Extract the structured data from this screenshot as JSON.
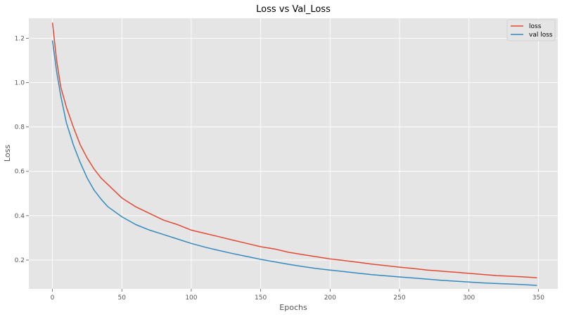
{
  "chart_data": {
    "type": "line",
    "title": "Loss vs Val_Loss",
    "xlabel": "Epochs",
    "ylabel": "Loss",
    "xlim": [
      -17,
      364
    ],
    "ylim": [
      0.07,
      1.29
    ],
    "xticks": [
      0,
      50,
      100,
      150,
      200,
      250,
      300,
      350
    ],
    "yticks": [
      0.2,
      0.4,
      0.6,
      0.8,
      1.0,
      1.2
    ],
    "ytick_labels": [
      "0.2",
      "0.4",
      "0.6",
      "0.8",
      "1.0",
      "1.2"
    ],
    "grid": true,
    "legend_position": "top-right",
    "colors": {
      "background": "#e5e5e5",
      "grid": "#ffffff",
      "loss": "#e24a33",
      "val_loss": "#348abd"
    },
    "series": [
      {
        "name": "loss",
        "x": [
          0,
          3,
          6,
          10,
          15,
          20,
          25,
          30,
          35,
          40,
          50,
          60,
          70,
          80,
          90,
          100,
          110,
          120,
          130,
          140,
          150,
          160,
          170,
          180,
          190,
          200,
          210,
          220,
          230,
          240,
          250,
          260,
          270,
          280,
          290,
          300,
          310,
          320,
          330,
          340,
          349
        ],
        "y": [
          1.27,
          1.1,
          0.98,
          0.89,
          0.8,
          0.72,
          0.66,
          0.61,
          0.57,
          0.54,
          0.48,
          0.44,
          0.41,
          0.38,
          0.36,
          0.335,
          0.32,
          0.305,
          0.29,
          0.275,
          0.26,
          0.25,
          0.235,
          0.225,
          0.215,
          0.205,
          0.198,
          0.19,
          0.182,
          0.175,
          0.168,
          0.162,
          0.155,
          0.15,
          0.145,
          0.14,
          0.135,
          0.13,
          0.127,
          0.124,
          0.12
        ]
      },
      {
        "name": "val loss",
        "x": [
          0,
          3,
          6,
          10,
          15,
          20,
          25,
          30,
          35,
          40,
          50,
          60,
          70,
          80,
          90,
          100,
          110,
          120,
          130,
          140,
          150,
          160,
          170,
          180,
          190,
          200,
          210,
          220,
          230,
          240,
          250,
          260,
          270,
          280,
          290,
          300,
          310,
          320,
          330,
          340,
          349
        ],
        "y": [
          1.19,
          1.05,
          0.94,
          0.82,
          0.72,
          0.64,
          0.57,
          0.515,
          0.475,
          0.44,
          0.395,
          0.36,
          0.335,
          0.315,
          0.295,
          0.275,
          0.258,
          0.243,
          0.229,
          0.216,
          0.203,
          0.192,
          0.181,
          0.171,
          0.162,
          0.155,
          0.148,
          0.141,
          0.134,
          0.129,
          0.124,
          0.119,
          0.114,
          0.109,
          0.105,
          0.101,
          0.097,
          0.094,
          0.092,
          0.089,
          0.086
        ]
      }
    ]
  }
}
